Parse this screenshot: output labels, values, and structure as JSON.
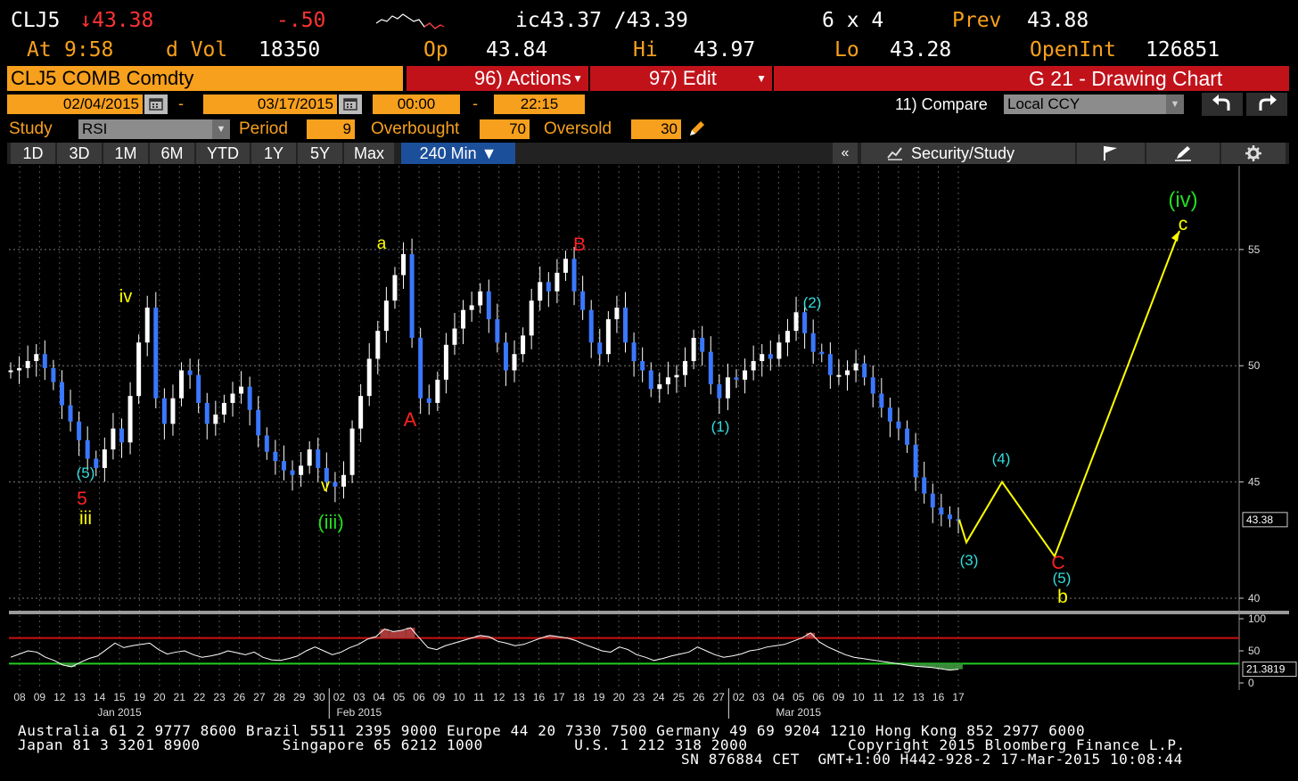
{
  "quote": {
    "ticker": "CLJ5",
    "last": "↓43.38",
    "change": "-.50",
    "bid_ask": "ic43.37 /43.39",
    "size": "6 x 4",
    "prev_label": "Prev",
    "prev": "43.88",
    "at_label": "At",
    "time": "9:58",
    "vol_label": "d Vol",
    "vol": "18350",
    "op_label": "Op",
    "op": "43.84",
    "hi_label": "Hi",
    "hi": "43.97",
    "lo_label": "Lo",
    "lo": "43.28",
    "oi_label": "OpenInt",
    "oi": "126851"
  },
  "toolbar": {
    "security": "CLJ5 COMB Comdty",
    "actions": "96) Actions",
    "edit": "97) Edit",
    "title": "G 21 - Drawing Chart"
  },
  "dates": {
    "start": "02/04/2015",
    "dash1": "-",
    "end": "03/17/2015",
    "time_start": "00:00",
    "dash2": "-",
    "time_end": "22:15",
    "compare_label": "11) Compare",
    "compare_value": "Local CCY"
  },
  "study": {
    "label": "Study",
    "value": "RSI",
    "period_label": "Period",
    "period": "9",
    "overbought_label": "Overbought",
    "overbought": "70",
    "oversold_label": "Oversold",
    "oversold": "30"
  },
  "tabs": [
    "1D",
    "3D",
    "1M",
    "6M",
    "YTD",
    "1Y",
    "5Y",
    "Max"
  ],
  "active_tab": "240 Min ▼",
  "right_panel": {
    "collapse": "«",
    "label": "Security/Study"
  },
  "icons": {
    "calendar": "calendar-icon",
    "pencil": "pencil-icon",
    "undo": "undo-icon",
    "redo": "redo-icon",
    "chart": "chart-icon",
    "flag": "flag-icon",
    "edit": "edit-icon",
    "gear": "gear-icon"
  },
  "colors": {
    "orange": "#f7a01d",
    "red": "#c1121a",
    "blue_tab": "#1c4f9a",
    "candle": "#3a78ff",
    "projection": "#ffff00",
    "rsi_line": "#ffffff",
    "overbought_line": "#cc1111",
    "oversold_line": "#22cc22"
  },
  "chart_data": {
    "type": "line",
    "price_axis": {
      "ticks": [
        "55",
        "50",
        "45",
        "40"
      ],
      "ylim": [
        39.5,
        58.6
      ],
      "last_label": "43.38"
    },
    "rsi_axis": {
      "ticks": [
        "100",
        "50",
        "0"
      ],
      "ylim": [
        0,
        100
      ],
      "last_label": "21.3819",
      "overbought": 70,
      "oversold": 30
    },
    "x_ticks": [
      "08",
      "09",
      "12",
      "13",
      "14",
      "15",
      "19",
      "20",
      "21",
      "22",
      "23",
      "26",
      "27",
      "28",
      "29",
      "30",
      "02",
      "03",
      "04",
      "05",
      "06",
      "09",
      "10",
      "11",
      "12",
      "13",
      "16",
      "17",
      "18",
      "19",
      "20",
      "23",
      "24",
      "25",
      "26",
      "27",
      "02",
      "03",
      "04",
      "05",
      "06",
      "09",
      "10",
      "11",
      "12",
      "13",
      "16",
      "17"
    ],
    "month_labels": [
      "Jan 2015",
      "Feb 2015",
      "Mar 2015"
    ],
    "price_series": {
      "name": "CLJ5",
      "values": [
        49.8,
        49.9,
        50.2,
        50.5,
        49.9,
        49.3,
        48.3,
        47.6,
        46.8,
        46.0,
        45.6,
        46.4,
        47.3,
        46.7,
        48.7,
        51.0,
        52.5,
        48.6,
        47.5,
        48.6,
        49.8,
        49.6,
        48.4,
        47.5,
        47.9,
        48.4,
        48.8,
        49.1,
        48.1,
        47.0,
        46.3,
        45.9,
        45.5,
        45.3,
        45.7,
        46.4,
        45.6,
        45.0,
        44.8,
        45.3,
        47.3,
        48.7,
        50.3,
        51.5,
        52.8,
        53.9,
        54.8,
        51.2,
        48.6,
        48.4,
        49.4,
        50.9,
        51.6,
        52.4,
        52.6,
        53.2,
        52.0,
        51.0,
        49.8,
        50.5,
        51.3,
        52.8,
        53.6,
        53.2,
        54.0,
        54.6,
        53.2,
        52.4,
        51.0,
        50.5,
        52.0,
        52.5,
        51.0,
        50.2,
        49.8,
        49.0,
        49.2,
        49.5,
        49.6,
        50.2,
        51.2,
        50.6,
        49.2,
        48.6,
        49.5,
        49.4,
        49.8,
        50.2,
        50.5,
        50.3,
        51.0,
        51.5,
        52.3,
        51.4,
        50.6,
        50.5,
        49.6,
        49.6,
        49.8,
        50.1,
        49.5,
        48.8,
        48.2,
        47.6,
        47.3,
        46.6,
        45.2,
        44.5,
        43.9,
        43.6,
        43.4,
        43.38
      ]
    },
    "rsi_series": {
      "name": "RSI",
      "values": [
        40,
        45,
        50,
        48,
        40,
        35,
        28,
        25,
        32,
        38,
        42,
        52,
        62,
        55,
        58,
        60,
        62,
        52,
        45,
        48,
        50,
        44,
        40,
        42,
        45,
        50,
        47,
        44,
        48,
        40,
        36,
        35,
        38,
        42,
        50,
        56,
        50,
        44,
        48,
        55,
        60,
        68,
        72,
        84,
        80,
        82,
        86,
        70,
        55,
        52,
        58,
        62,
        66,
        70,
        74,
        72,
        65,
        62,
        58,
        60,
        65,
        70,
        74,
        72,
        70,
        66,
        60,
        55,
        50,
        48,
        56,
        52,
        44,
        40,
        35,
        38,
        42,
        45,
        48,
        56,
        50,
        44,
        40,
        42,
        45,
        50,
        52,
        56,
        58,
        60,
        65,
        70,
        78,
        64,
        56,
        50,
        44,
        40,
        38,
        36,
        34,
        32,
        30,
        28,
        26,
        25,
        24,
        22,
        20,
        21.38
      ]
    },
    "projection": {
      "name": "",
      "points": [
        [
          43.38,
          0
        ],
        [
          42.4,
          1
        ],
        [
          45.0,
          2
        ],
        [
          41.8,
          3
        ],
        [
          55.8,
          4
        ]
      ]
    },
    "wave_labels": [
      {
        "text": "(5)",
        "color": "cyan"
      },
      {
        "text": "5",
        "color": "red"
      },
      {
        "text": "iii",
        "color": "yellow"
      },
      {
        "text": "iv",
        "color": "yellow"
      },
      {
        "text": "v",
        "color": "yellow"
      },
      {
        "text": "(iii)",
        "color": "green"
      },
      {
        "text": "a",
        "color": "yellow"
      },
      {
        "text": "A",
        "color": "red"
      },
      {
        "text": "B",
        "color": "red"
      },
      {
        "text": "(1)",
        "color": "cyan"
      },
      {
        "text": "(2)",
        "color": "cyan"
      },
      {
        "text": "(3)",
        "color": "cyan"
      },
      {
        "text": "(4)",
        "color": "cyan"
      },
      {
        "text": "C",
        "color": "red"
      },
      {
        "text": "(5)",
        "color": "cyan"
      },
      {
        "text": "b",
        "color": "yellow"
      },
      {
        "text": "(iv)",
        "color": "green"
      },
      {
        "text": "c",
        "color": "yellow"
      }
    ]
  },
  "footer": {
    "line1": "Australia 61 2 9777 8600 Brazil 5511 2395 9000 Europe 44 20 7330 7500 Germany 49 69 9204 1210 Hong Kong 852 2977 6000",
    "line2": "Japan 81 3 3201 8900         Singapore 65 6212 1000          U.S. 1 212 318 2000           Copyright 2015 Bloomberg Finance L.P.",
    "line3": "SN 876884 CET  GMT+1:00 H442-928-2 17-Mar-2015 10:08:44"
  }
}
